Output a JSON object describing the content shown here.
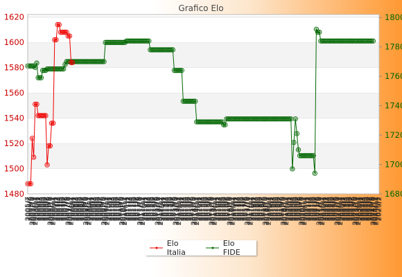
{
  "chart_data": {
    "type": "line",
    "title": "Grafico Elo",
    "colors": {
      "italia": "#ee0000",
      "fide": "#006600"
    },
    "y_left": {
      "ticks": [
        1480,
        1500,
        1520,
        1540,
        1560,
        1580,
        1600,
        1620
      ],
      "range": [
        1480,
        1622
      ],
      "color": "#cc0000"
    },
    "y_right": {
      "ticks": [
        1680,
        1700,
        1720,
        1740,
        1760,
        1780,
        1800
      ],
      "range": [
        1680,
        1802
      ],
      "color": "#006600"
    },
    "x_tick_labels": [
      "2005/7",
      "2005/8",
      "2005/9",
      "2005/10",
      "2005/11",
      "2005/12",
      "2006/1",
      "2006/2",
      "2006/3",
      "2006/4",
      "2006/5",
      "2006/6",
      "2006/7",
      "2006/8",
      "2006/9",
      "2006/10",
      "2006/11",
      "2006/12",
      "2007/1",
      "2007/2",
      "2007/3",
      "2007/4",
      "2007/5",
      "2007/6",
      "2007/7",
      "2007/8",
      "2007/9",
      "2007/10",
      "2007/11",
      "2007/12",
      "2008/1",
      "2008/2",
      "2008/3",
      "2008/4",
      "2008/5",
      "2008/6",
      "2008/7",
      "2008/8",
      "2008/9",
      "2008/10",
      "2008/11",
      "2008/12",
      "2009/1",
      "2009/2",
      "2009/3",
      "2009/4",
      "2009/5",
      "2009/6",
      "2009/7",
      "2009/8",
      "2009/9",
      "2009/10",
      "2009/11",
      "2009/12",
      "2010/1",
      "2010/2",
      "2010/3",
      "2010/4",
      "2010/5",
      "2010/6",
      "2010/7",
      "2010/8",
      "2010/9",
      "2010/10",
      "2010/11",
      "2010/12",
      "2011/1",
      "2011/2",
      "2011/3",
      "2011/4",
      "2011/5",
      "2011/6",
      "2011/7",
      "2011/8",
      "2011/9",
      "2011/10",
      "2011/11",
      "2011/12",
      "2012/1",
      "2012/2",
      "2012/3",
      "2012/4",
      "2012/5",
      "2012/6",
      "2012/7",
      "2012/8",
      "2012/9",
      "2012/10",
      "2012/11",
      "2012/12",
      "2013/1",
      "2013/2",
      "2013/3",
      "2013/4",
      "2013/5",
      "2013/6",
      "2013/7",
      "2013/8",
      "2013/9",
      "2013/10",
      "2013/11",
      "2013/12",
      "2014/1",
      "2014/2",
      "2014/3",
      "2014/4",
      "2014/5",
      "2014/6",
      "2014/7",
      "2014/8",
      "2014/9",
      "2014/10",
      "2014/11",
      "2014/12",
      "2015/1",
      "2015/2",
      "2015/3",
      "2015/4",
      "2015/5",
      "2015/6",
      "2015/7",
      "2015/8",
      "2015/9",
      "2015/10",
      "2015/11",
      "2015/12",
      "2016/1",
      "2016/2",
      "2016/3",
      "2016/4",
      "2016/5",
      "2016/6",
      "2016/7",
      "2016/8",
      "2016/9",
      "2016/10",
      "2016/11",
      "2016/12",
      "2017/1",
      "2017/2",
      "2017/3",
      "2017/4",
      "2017/5",
      "2017/6",
      "2017/7",
      "2017/8",
      "2017/9",
      "2017/10",
      "2017/11",
      "2017/12",
      "2018/1",
      "2018/2",
      "2018/3",
      "2018/4",
      "2018/5",
      "2018/6",
      "2018/7",
      "2018/8",
      "2018/9",
      "2018/10",
      "2018/11",
      "2018/12",
      "2019/1",
      "2019/2",
      "2019/3",
      "2019/4",
      "2019/5",
      "2019/6",
      "2019/7",
      "2019/8",
      "2019/9",
      "2019/10",
      "2019/11",
      "2019/12",
      "2020/1",
      "2020/2",
      "2020/3",
      "2020/4",
      "2020/5",
      "2020/6",
      "2020/7",
      "2020/8",
      "2020/9",
      "2020/10",
      "2020/11",
      "2020/12",
      "2021/1",
      "2021/2",
      "2021/3",
      "2021/4",
      "2021/5",
      "2021/6",
      "2021/7",
      "2021/8",
      "2021/9",
      "2021/10",
      "2021/11",
      "2021/12",
      "2022/1",
      "2022/2",
      "2022/3",
      "2022/4",
      "2022/5",
      "2022/6",
      "2022/7",
      "2022/8",
      "2022/9",
      "2022/10",
      "2022/11",
      "2022/12",
      "2023/1",
      "2023/2",
      "2023/3",
      "2023/4",
      "2023/5",
      "2023/6",
      "2023/7",
      "2023/8",
      "2023/9",
      "2023/10",
      "2023/11",
      "2023/12",
      "2024/1",
      "2024/2",
      "2024/3",
      "2024/4",
      "2024/5",
      "2024/6",
      "2024/7",
      "2024/8",
      "2024/9",
      "2024/10",
      "2024/11",
      "2024/12",
      "2025/1",
      "2025/2"
    ],
    "series": [
      {
        "name": "Elo Italia",
        "axis": "left",
        "values": [
          1488,
          1488,
          1488,
          1524,
          1509,
          1551,
          1551,
          1542,
          1542,
          1542,
          1542,
          1542,
          1542,
          1503,
          1518,
          1518,
          1536,
          1536,
          1602,
          1602,
          1614,
          1614,
          1608,
          1608,
          1608,
          1608,
          1608,
          1605,
          1605,
          1584,
          1584
        ]
      },
      {
        "name": "Elo FIDE",
        "axis": "right",
        "values": [
          1767,
          1767,
          1767,
          1767,
          1767,
          1766,
          1769,
          1759,
          1759,
          1759,
          1764,
          1764,
          1764,
          1765,
          1765,
          1765,
          1765,
          1765,
          1765,
          1765,
          1765,
          1765,
          1765,
          1765,
          1765,
          1768,
          1770,
          1770,
          1770,
          1770,
          1770,
          1770,
          1770,
          1770,
          1770,
          1770,
          1770,
          1770,
          1770,
          1770,
          1770,
          1770,
          1770,
          1770,
          1770,
          1770,
          1770,
          1770,
          1770,
          1770,
          1770,
          1770,
          1783,
          1783,
          1783,
          1783,
          1783,
          1783,
          1783,
          1783,
          1783,
          1783,
          1783,
          1783,
          1783,
          1783,
          1784,
          1784,
          1784,
          1784,
          1784,
          1784,
          1784,
          1784,
          1784,
          1784,
          1784,
          1784,
          1784,
          1784,
          1784,
          1784,
          1778,
          1778,
          1778,
          1778,
          1778,
          1778,
          1778,
          1778,
          1778,
          1778,
          1778,
          1778,
          1778,
          1778,
          1778,
          1778,
          1764,
          1764,
          1764,
          1764,
          1764,
          1764,
          1743,
          1743,
          1743,
          1743,
          1743,
          1743,
          1743,
          1743,
          1743,
          1729,
          1729,
          1729,
          1729,
          1729,
          1729,
          1729,
          1729,
          1729,
          1729,
          1729,
          1729,
          1729,
          1729,
          1729,
          1729,
          1729,
          1729,
          1727,
          1727,
          1731,
          1731,
          1731,
          1731,
          1731,
          1731,
          1731,
          1731,
          1731,
          1731,
          1731,
          1731,
          1731,
          1731,
          1731,
          1731,
          1731,
          1731,
          1731,
          1731,
          1731,
          1731,
          1731,
          1731,
          1731,
          1731,
          1731,
          1731,
          1731,
          1731,
          1731,
          1731,
          1731,
          1731,
          1731,
          1731,
          1731,
          1731,
          1731,
          1731,
          1731,
          1731,
          1731,
          1731,
          1697,
          1715,
          1731,
          1721,
          1710,
          1706,
          1706,
          1706,
          1706,
          1706,
          1706,
          1706,
          1706,
          1706,
          1706,
          1694,
          1792,
          1790,
          1790,
          1784,
          1784,
          1784,
          1784,
          1784,
          1784,
          1784,
          1784,
          1784,
          1784,
          1784,
          1784,
          1784,
          1784,
          1784,
          1784,
          1784,
          1784,
          1784,
          1784,
          1784,
          1784,
          1784,
          1784,
          1784,
          1784,
          1784,
          1784,
          1784,
          1784,
          1784,
          1784,
          1784,
          1784,
          1784,
          1784
        ]
      }
    ],
    "legend": {
      "placement": "bottom",
      "items": [
        "Elo Italia",
        "Elo FIDE"
      ]
    },
    "grid": "horizontal-bands"
  }
}
